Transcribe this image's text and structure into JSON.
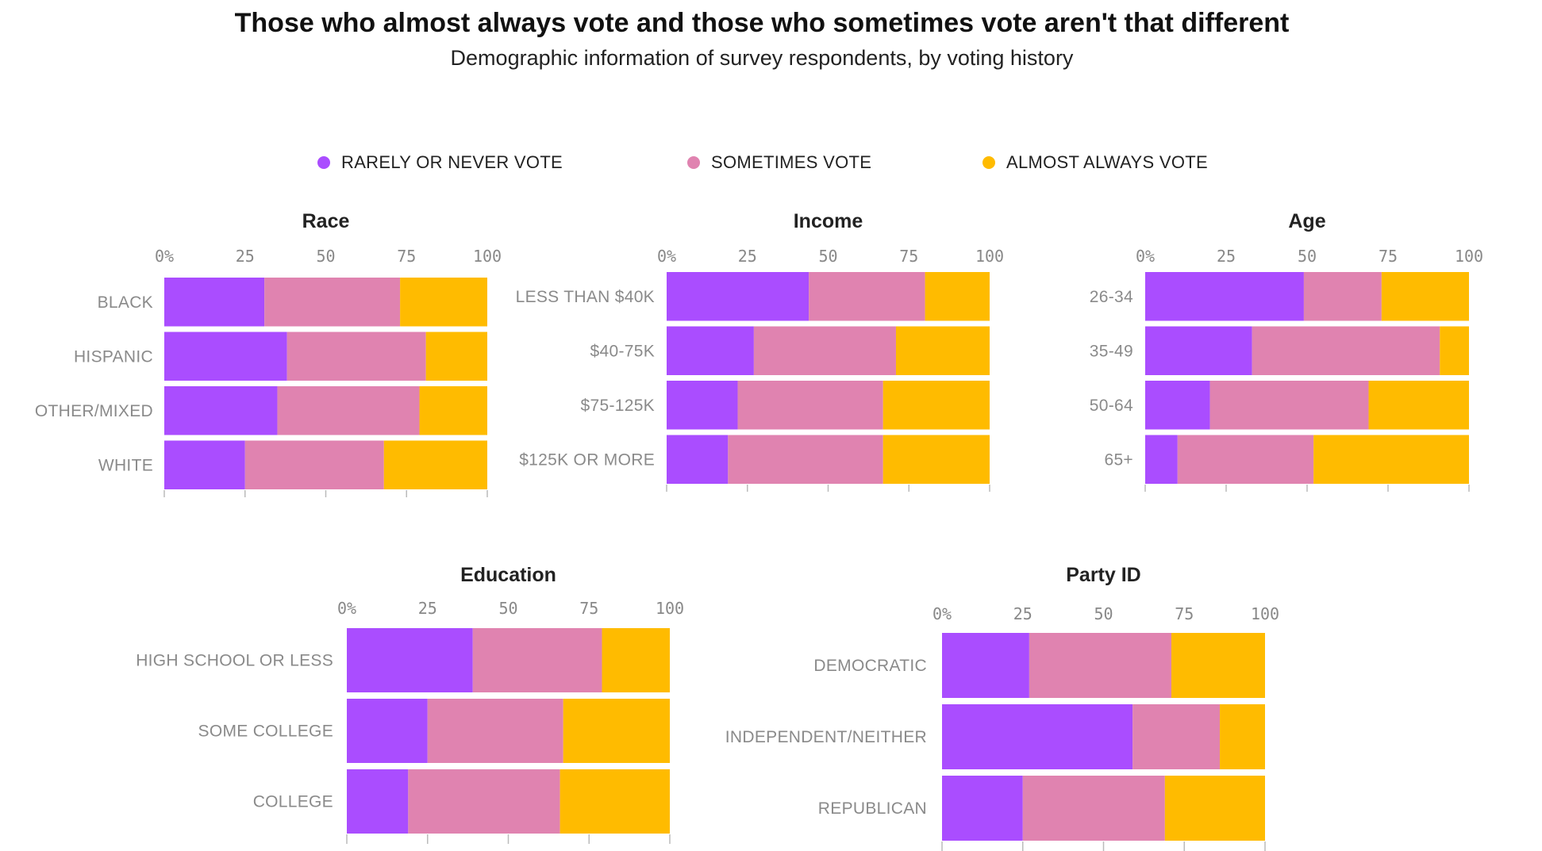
{
  "title": "Those who almost always vote and those who sometimes vote aren't that different",
  "subtitle": "Demographic information of survey respondents, by voting history",
  "legend": [
    {
      "label": "RARELY OR NEVER VOTE",
      "color": "#aa4dff"
    },
    {
      "label": "SOMETIMES VOTE",
      "color": "#e083b0"
    },
    {
      "label": "ALMOST ALWAYS VOTE",
      "color": "#ffbb00"
    }
  ],
  "chart_data": [
    {
      "type": "bar",
      "stacked": true,
      "orientation": "horizontal",
      "title": "Race",
      "xlim": [
        0,
        100
      ],
      "ticks": [
        "0%",
        "25",
        "50",
        "75",
        "100"
      ],
      "categories": [
        "BLACK",
        "HISPANIC",
        "OTHER/MIXED",
        "WHITE"
      ],
      "series": [
        {
          "name": "RARELY OR NEVER VOTE",
          "values": [
            31,
            38,
            35,
            25
          ]
        },
        {
          "name": "SOMETIMES VOTE",
          "values": [
            42,
            43,
            44,
            43
          ]
        },
        {
          "name": "ALMOST ALWAYS VOTE",
          "values": [
            27,
            19,
            21,
            32
          ]
        }
      ]
    },
    {
      "type": "bar",
      "stacked": true,
      "orientation": "horizontal",
      "title": "Income",
      "xlim": [
        0,
        100
      ],
      "ticks": [
        "0%",
        "25",
        "50",
        "75",
        "100"
      ],
      "categories": [
        "LESS THAN $40K",
        "$40-75K",
        "$75-125K",
        "$125K OR MORE"
      ],
      "series": [
        {
          "name": "RARELY OR NEVER VOTE",
          "values": [
            44,
            27,
            22,
            19
          ]
        },
        {
          "name": "SOMETIMES VOTE",
          "values": [
            36,
            44,
            45,
            48
          ]
        },
        {
          "name": "ALMOST ALWAYS VOTE",
          "values": [
            20,
            29,
            33,
            33
          ]
        }
      ]
    },
    {
      "type": "bar",
      "stacked": true,
      "orientation": "horizontal",
      "title": "Age",
      "xlim": [
        0,
        100
      ],
      "ticks": [
        "0%",
        "25",
        "50",
        "75",
        "100"
      ],
      "categories": [
        "26-34",
        "35-49",
        "50-64",
        "65+"
      ],
      "series": [
        {
          "name": "RARELY OR NEVER VOTE",
          "values": [
            49,
            33,
            20,
            10
          ]
        },
        {
          "name": "SOMETIMES VOTE",
          "values": [
            24,
            58,
            49,
            42
          ]
        },
        {
          "name": "ALMOST ALWAYS VOTE",
          "values": [
            27,
            9,
            31,
            48
          ]
        }
      ]
    },
    {
      "type": "bar",
      "stacked": true,
      "orientation": "horizontal",
      "title": "Education",
      "xlim": [
        0,
        100
      ],
      "ticks": [
        "0%",
        "25",
        "50",
        "75",
        "100"
      ],
      "categories": [
        "HIGH SCHOOL OR LESS",
        "SOME COLLEGE",
        "COLLEGE"
      ],
      "series": [
        {
          "name": "RARELY OR NEVER VOTE",
          "values": [
            39,
            25,
            19
          ]
        },
        {
          "name": "SOMETIMES VOTE",
          "values": [
            40,
            42,
            47
          ]
        },
        {
          "name": "ALMOST ALWAYS VOTE",
          "values": [
            21,
            33,
            34
          ]
        }
      ]
    },
    {
      "type": "bar",
      "stacked": true,
      "orientation": "horizontal",
      "title": "Party ID",
      "xlim": [
        0,
        100
      ],
      "ticks": [
        "0%",
        "25",
        "50",
        "75",
        "100"
      ],
      "categories": [
        "DEMOCRATIC",
        "INDEPENDENT/NEITHER",
        "REPUBLICAN"
      ],
      "series": [
        {
          "name": "RARELY OR NEVER VOTE",
          "values": [
            27,
            59,
            25
          ]
        },
        {
          "name": "SOMETIMES VOTE",
          "values": [
            44,
            27,
            44
          ]
        },
        {
          "name": "ALMOST ALWAYS VOTE",
          "values": [
            29,
            14,
            31
          ]
        }
      ]
    }
  ]
}
